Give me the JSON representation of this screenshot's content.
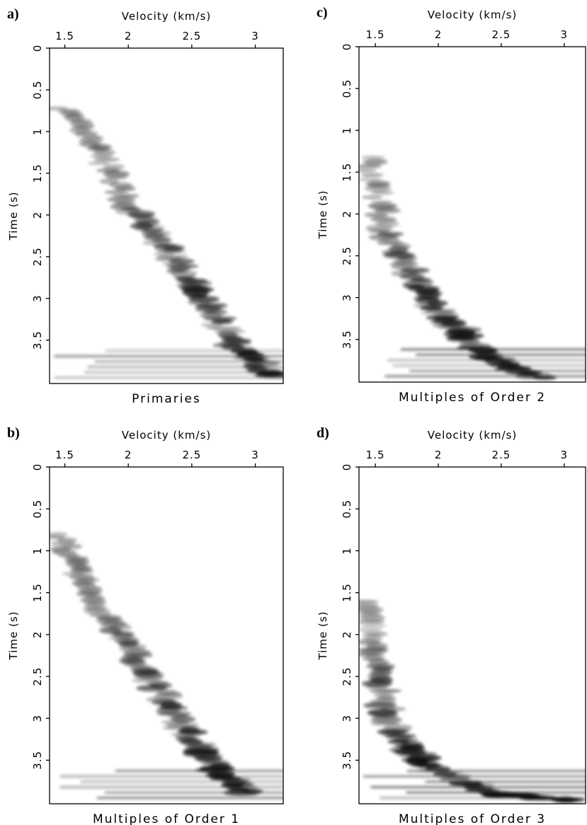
{
  "chart_data": [
    {
      "type": "image",
      "label": "a)",
      "xlabel": "Velocity (km/s)",
      "ylabel": "Time (s)",
      "caption": "Primaries",
      "xlim": [
        1.38,
        3.22
      ],
      "xticks": [
        1.5,
        2,
        2.5,
        3
      ],
      "ylim": [
        0,
        4.02
      ],
      "yticks": [
        0,
        0.5,
        1,
        1.5,
        2,
        2.5,
        3,
        3.5
      ],
      "y_inverted": true
    },
    {
      "type": "image",
      "label": "b)",
      "xlabel": "Velocity (km/s)",
      "ylabel": "Time (s)",
      "caption": "Multiples of Order 1",
      "xlim": [
        1.38,
        3.22
      ],
      "xticks": [
        1.5,
        2,
        2.5,
        3
      ],
      "ylim": [
        0,
        4.02
      ],
      "yticks": [
        0,
        0.5,
        1,
        1.5,
        2,
        2.5,
        3,
        3.5
      ],
      "y_inverted": true
    },
    {
      "type": "image",
      "label": "c)",
      "xlabel": "Velocity (km/s)",
      "ylabel": "Time (s)",
      "caption": "Multiples of Order 2",
      "xlim": [
        1.37,
        3.17
      ],
      "xticks": [
        1.5,
        2,
        2.5,
        3
      ],
      "ylim": [
        0,
        4.01
      ],
      "yticks": [
        0,
        0.5,
        1,
        1.5,
        2,
        2.5,
        3,
        3.5
      ],
      "y_inverted": true
    },
    {
      "type": "image",
      "label": "d)",
      "xlabel": "Velocity (km/s)",
      "ylabel": "Time (s)",
      "caption": "Multiples of Order 3",
      "xlim": [
        1.37,
        3.17
      ],
      "xticks": [
        1.5,
        2,
        2.5,
        3
      ],
      "ylim": [
        0,
        4.02
      ],
      "yticks": [
        0,
        0.5,
        1,
        1.5,
        2,
        2.5,
        3,
        3.5
      ],
      "y_inverted": true
    }
  ]
}
